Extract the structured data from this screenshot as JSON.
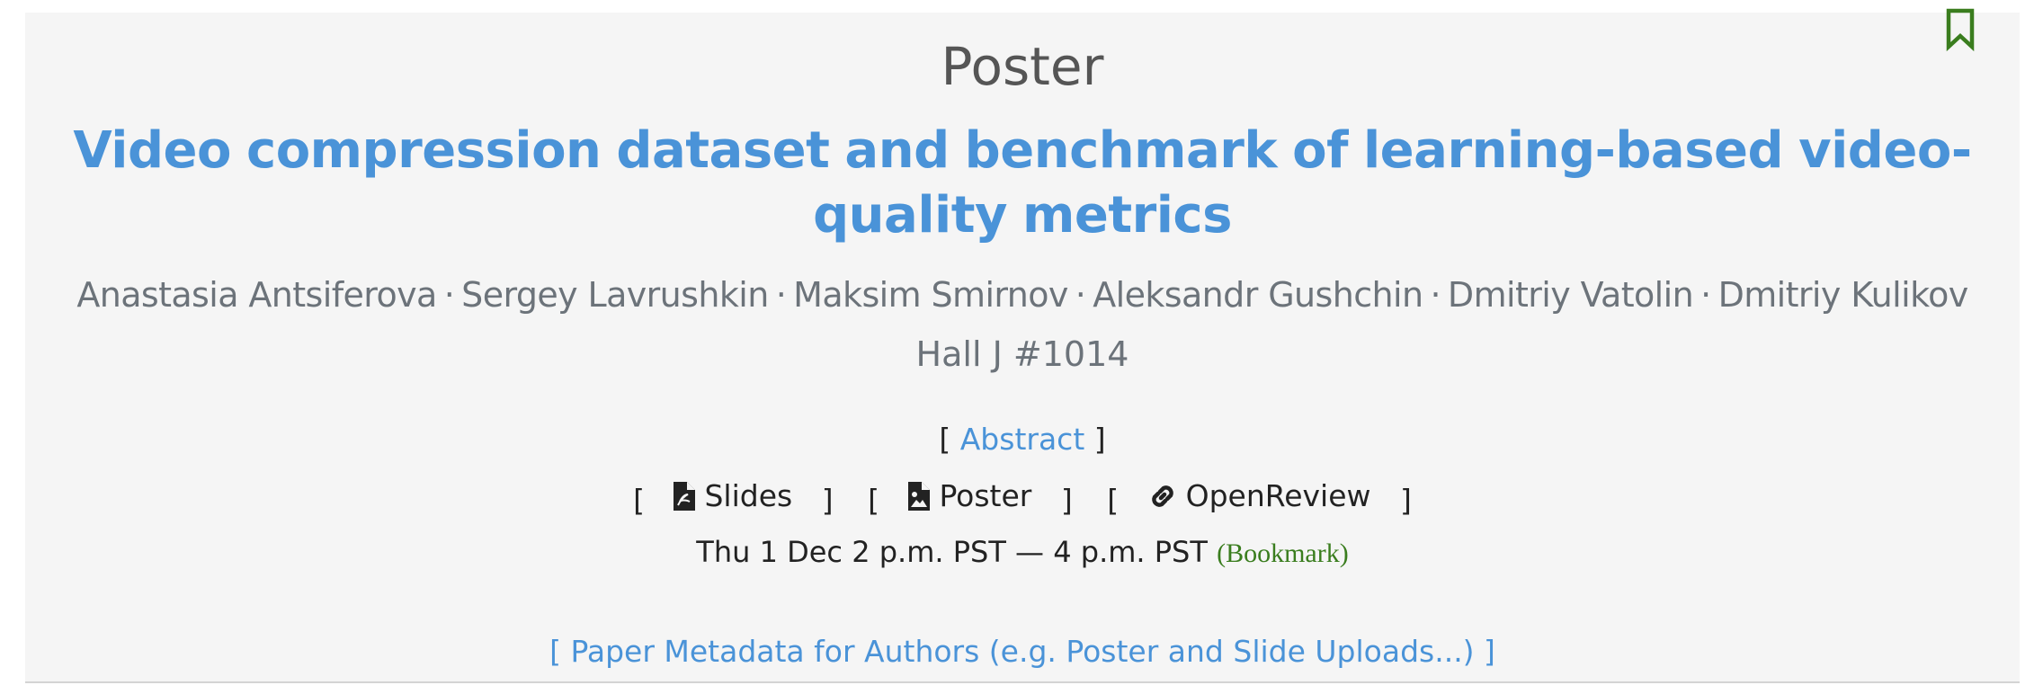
{
  "event": {
    "type_label": "Poster",
    "title": "Video compression dataset and benchmark of learning-based video-quality metrics",
    "authors": [
      "Anastasia Antsiferova",
      "Sergey Lavrushkin",
      "Maksim Smirnov",
      "Aleksandr Gushchin",
      "Dmitriy Vatolin",
      "Dmitriy Kulikov"
    ],
    "author_separator": "·",
    "location": "Hall J #1014",
    "abstract_link": "Abstract",
    "links": {
      "slides": "Slides",
      "poster": "Poster",
      "openreview": "OpenReview"
    },
    "time": "Thu 1 Dec 2 p.m. PST — 4 p.m. PST",
    "bookmark_text": "(Bookmark)",
    "metadata_link": "[ Paper Metadata for Authors (e.g. Poster and Slide Uploads...) ]"
  },
  "icons": {
    "bookmark_corner": "bookmark-outline-icon",
    "slides": "file-pdf-icon",
    "poster": "file-image-icon",
    "openreview": "link-icon"
  },
  "colors": {
    "title": "#4a93d8",
    "links": "#4a93d8",
    "bookmark": "#3a7d1e",
    "authors": "#6c737a",
    "card_background": "#f5f5f5"
  }
}
